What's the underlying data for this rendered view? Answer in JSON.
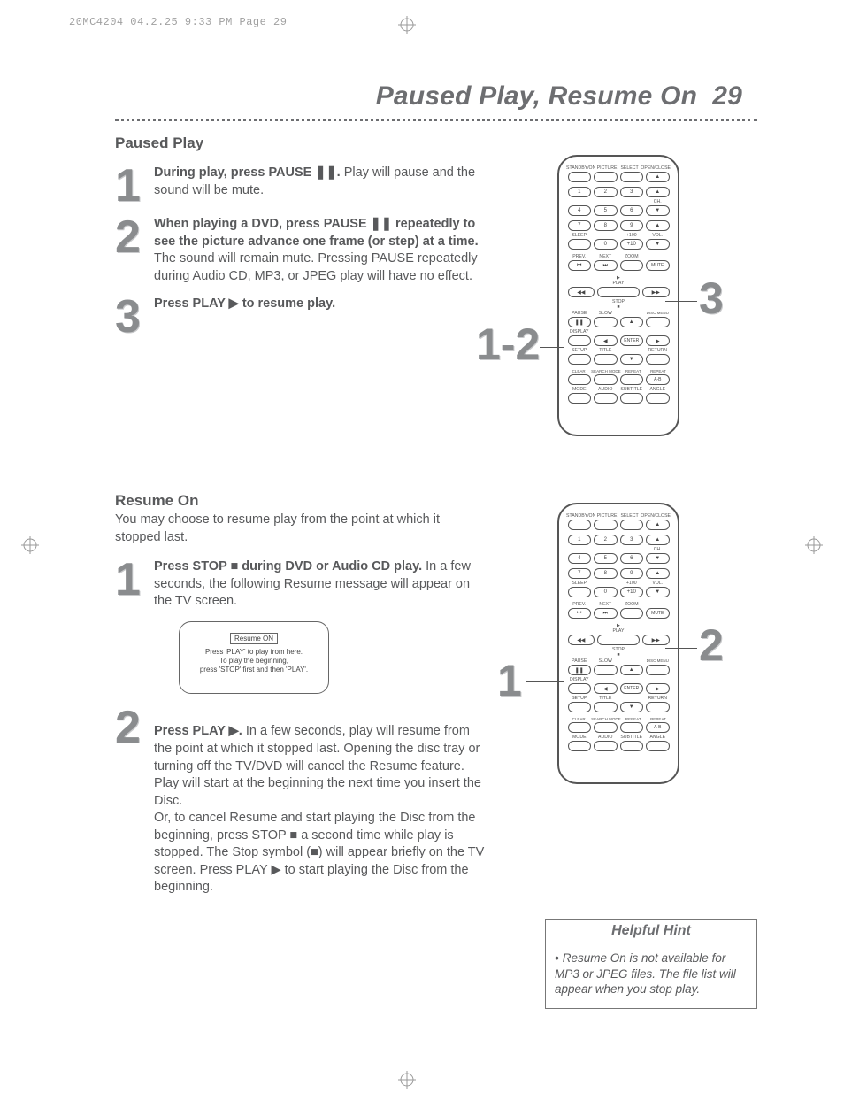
{
  "print_header": "20MC4204  04.2.25  9:33 PM  Page 29",
  "page_title_text": "Paused Play, Resume On",
  "page_number": "29",
  "colors": {
    "text": "#58595b",
    "accent_grey": "#8a8c8e",
    "rule": "#6d6e71"
  },
  "paused_play": {
    "heading": "Paused Play",
    "steps": [
      {
        "num": "1",
        "bold": "During play, press PAUSE ❚❚.",
        "rest": " Play will pause and the sound will be mute."
      },
      {
        "num": "2",
        "bold": "When playing a DVD, press PAUSE ❚❚ repeatedly to see the picture advance one frame (or step) at a time.",
        "rest": " The sound will remain mute. Pressing PAUSE repeatedly during Audio CD, MP3, or JPEG play will have no effect."
      },
      {
        "num": "3",
        "bold": "Press PLAY ▶ to resume play.",
        "rest": ""
      }
    ]
  },
  "resume_on": {
    "heading": "Resume On",
    "intro": "You may choose to resume play from the point at which it stopped last.",
    "steps": [
      {
        "num": "1",
        "bold": "Press STOP ■ during DVD or Audio CD play.",
        "rest": " In a few seconds, the following Resume message will appear on the TV screen."
      },
      {
        "num": "2",
        "bold": "Press PLAY ▶.",
        "rest": " In a few seconds, play will resume from the point at which it stopped last. Opening the disc tray or turning off the TV/DVD will cancel the Resume feature. Play will start at the beginning the next time you insert the Disc.\nOr, to cancel Resume and start playing the Disc from the beginning, press STOP ■ a second time while play is stopped. The Stop symbol (■) will appear briefly on the TV screen. Press PLAY ▶ to start playing the Disc from the beginning."
      }
    ],
    "tv_label": "Resume ON",
    "tv_msg_line1": "Press 'PLAY' to play from here.",
    "tv_msg_line2": "To play the beginning,",
    "tv_msg_line3": "press 'STOP' first and then 'PLAY'."
  },
  "hint": {
    "title": "Helpful Hint",
    "body": "Resume On is not available for MP3 or JPEG files. The file list will appear when you stop play."
  },
  "remote": {
    "row1_labels": [
      "STANDBY/ON",
      "PICTURE",
      "SELECT",
      "OPEN/CLOSE"
    ],
    "row5_labels_left": "SLEEP",
    "row5_labels_right": "VOL.",
    "num_plus100": "+100",
    "num_plus10": "+10",
    "row6_labels": [
      "PREV.",
      "NEXT",
      "ZOOM",
      ""
    ],
    "mute": "MUTE",
    "play_label": "PLAY",
    "stop_label": "STOP",
    "pause_label": "PAUSE",
    "slow_label": "SLOW",
    "disc_menu": "DISC MENU",
    "display": "DISPLAY",
    "enter": "ENTER",
    "setup": "SETUP",
    "title": "TITLE",
    "return": "RETURN",
    "row_bottom_labels": [
      "CLEAR",
      "SEARCH MODE",
      "REPEAT",
      "REPEAT"
    ],
    "ab": "A-B",
    "row_last_labels": [
      "MODE",
      "AUDIO",
      "SUBTITLE",
      "ANGLE"
    ],
    "ch": "CH."
  },
  "callouts": {
    "top_left": "1-2",
    "top_right": "3",
    "bottom_left": "1",
    "bottom_right": "2"
  }
}
